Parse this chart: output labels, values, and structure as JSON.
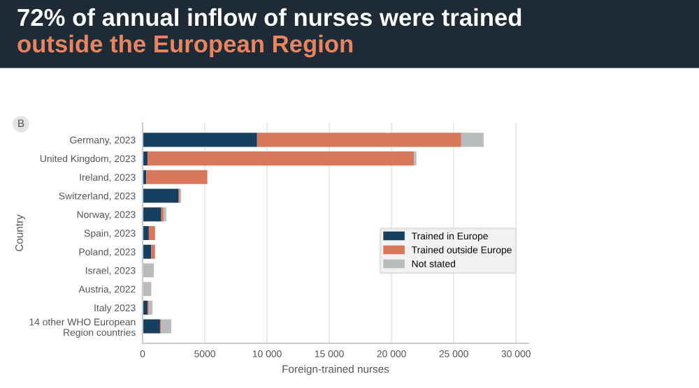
{
  "chart_data": {
    "type": "bar",
    "orientation": "horizontal",
    "stacked": true,
    "title": "72% of annual inflow of nurses were trained\noutside the European Region",
    "annotations": [
      "B"
    ],
    "xlabel": "Foreign-trained nurses",
    "ylabel": "Country",
    "categories": [
      "Germany, 2023",
      "United Kingdom, 2023",
      "Ireland, 2023",
      "Switzerland, 2023",
      "Norway, 2023",
      "Spain, 2023",
      "Poland, 2023",
      "Israel, 2023",
      "Austria, 2022",
      "Italy 2023",
      "14 other WHO European\nRegion countries"
    ],
    "series": [
      {
        "name": "Trained in Europe",
        "color": "#173f5f",
        "values": [
          9200,
          400,
          300,
          2900,
          1500,
          500,
          700,
          0,
          0,
          400,
          1400
        ]
      },
      {
        "name": "Trained outside Europe",
        "color": "#d9775a",
        "values": [
          16400,
          21400,
          4900,
          100,
          200,
          500,
          300,
          0,
          0,
          100,
          100
        ]
      },
      {
        "name": "Not stated",
        "color": "#b9bcbd",
        "values": [
          1800,
          200,
          0,
          100,
          200,
          0,
          0,
          900,
          700,
          300,
          800
        ]
      }
    ],
    "xlim": [
      0,
      31000
    ],
    "xticks": [
      0,
      5000,
      {
        "value": 10000,
        "label": "10 000"
      },
      {
        "value": 15000,
        "label": "15 000"
      },
      {
        "value": 20000,
        "label": "20 000"
      },
      {
        "value": 25000,
        "label": "25 000"
      },
      {
        "value": 30000,
        "label": "30 000"
      }
    ],
    "grid": "x",
    "legend": "right"
  }
}
